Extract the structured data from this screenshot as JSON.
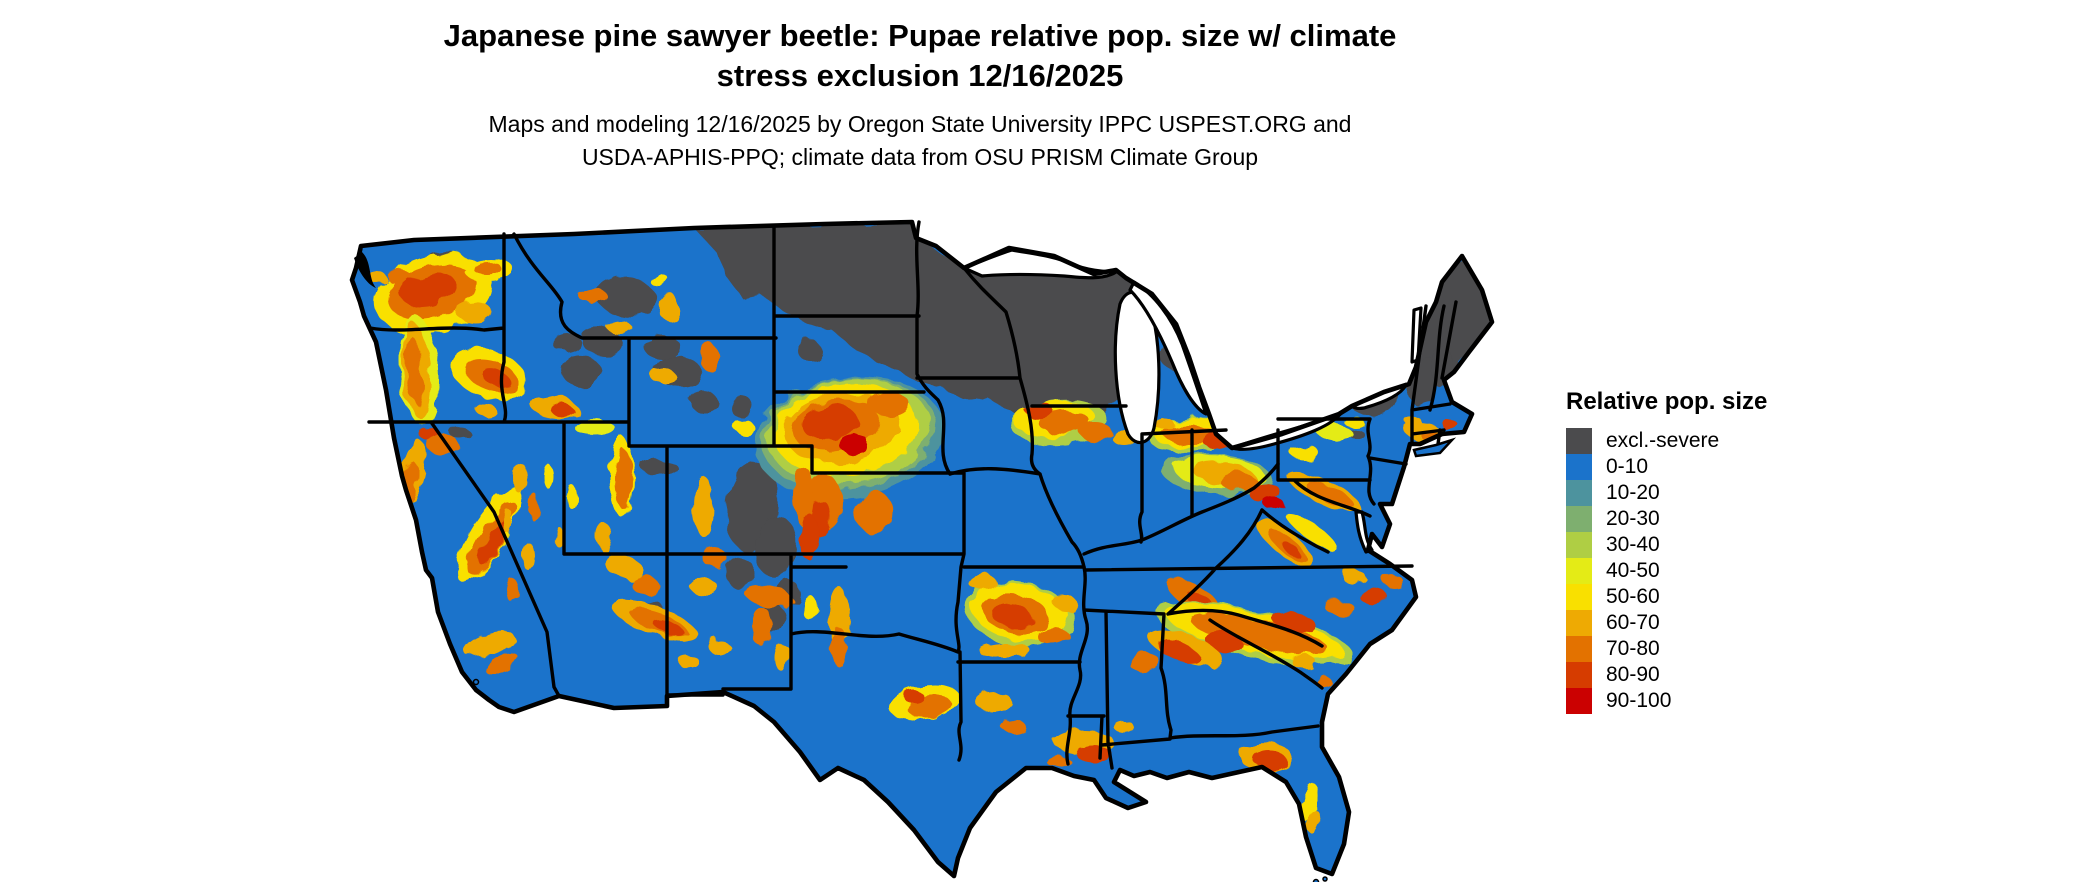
{
  "title": {
    "line1": "Japanese pine sawyer beetle: Pupae relative pop. size w/ climate",
    "line2": "stress exclusion 12/16/2025"
  },
  "subtitle": {
    "line1": "Maps and modeling 12/16/2025 by Oregon State University IPPC USPEST.ORG and",
    "line2": "USDA-APHIS-PPQ; climate data from OSU PRISM Climate Group"
  },
  "legend": {
    "title": "Relative pop. size",
    "items": [
      {
        "label": "excl.-severe",
        "color": "#4B4B4D"
      },
      {
        "label": "0-10",
        "color": "#1B73CB"
      },
      {
        "label": "10-20",
        "color": "#4D939E"
      },
      {
        "label": "20-30",
        "color": "#7EAF6F"
      },
      {
        "label": "30-40",
        "color": "#AFCE44"
      },
      {
        "label": "40-50",
        "color": "#E4EB16"
      },
      {
        "label": "50-60",
        "color": "#F9E000"
      },
      {
        "label": "60-70",
        "color": "#EEAA03"
      },
      {
        "label": "70-80",
        "color": "#E37200"
      },
      {
        "label": "80-90",
        "color": "#D63C00"
      },
      {
        "label": "90-100",
        "color": "#CB0101"
      }
    ]
  },
  "map": {
    "region": "Continental United States",
    "base_color": "#1B73CB",
    "excluded_color": "#4B4B4D",
    "water_color": "#FFFFFF",
    "state_border_color": "#000000"
  }
}
